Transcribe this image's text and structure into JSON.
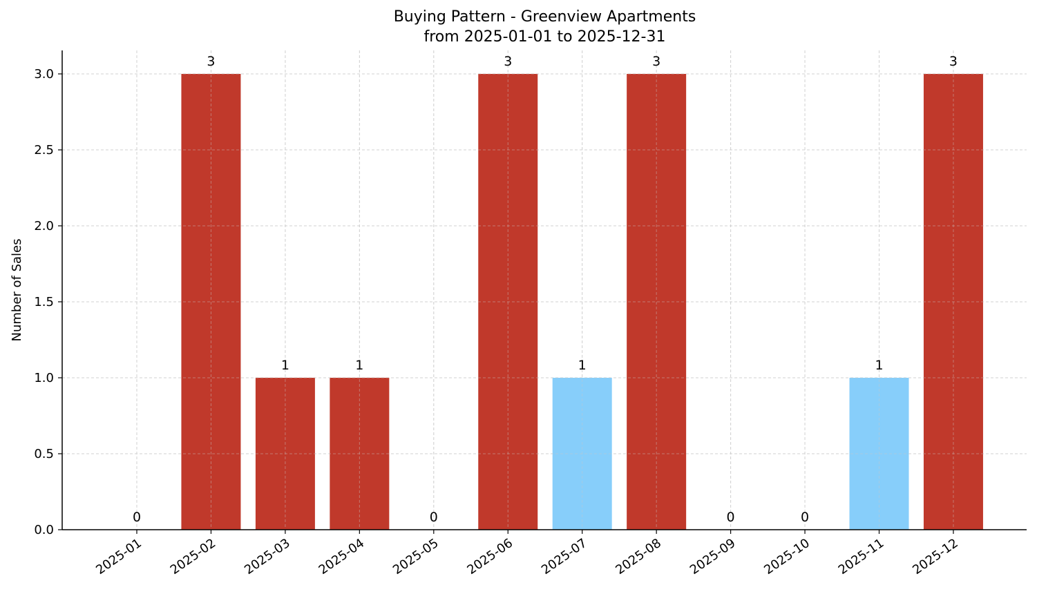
{
  "chart_data": {
    "type": "bar",
    "title": "Buying Pattern - Greenview Apartments",
    "subtitle": "from 2025-01-01 to 2025-12-31",
    "xlabel": "",
    "ylabel": "Number of Sales",
    "categories": [
      "2025-01",
      "2025-02",
      "2025-03",
      "2025-04",
      "2025-05",
      "2025-06",
      "2025-07",
      "2025-08",
      "2025-09",
      "2025-10",
      "2025-11",
      "2025-12"
    ],
    "values": [
      0,
      3,
      1,
      1,
      0,
      3,
      1,
      3,
      0,
      0,
      1,
      3
    ],
    "bar_colors": [
      "#c0392b",
      "#c0392b",
      "#c0392b",
      "#c0392b",
      "#c0392b",
      "#c0392b",
      "#87cefa",
      "#c0392b",
      "#c0392b",
      "#c0392b",
      "#87cefa",
      "#c0392b"
    ],
    "data_labels": [
      "0",
      "3",
      "1",
      "1",
      "0",
      "3",
      "1",
      "3",
      "0",
      "0",
      "1",
      "3"
    ],
    "ylim": [
      0,
      3.15
    ],
    "yticks": [
      0.0,
      0.5,
      1.0,
      1.5,
      2.0,
      2.5,
      3.0
    ],
    "ytick_labels": [
      "0.0",
      "0.5",
      "1.0",
      "1.5",
      "2.0",
      "2.5",
      "3.0"
    ],
    "grid": true,
    "legend": null
  },
  "colors": {
    "primary_bar": "#c0392b",
    "highlight_bar": "#87cefa",
    "grid": "#d9d9d9",
    "axis": "#000000"
  }
}
